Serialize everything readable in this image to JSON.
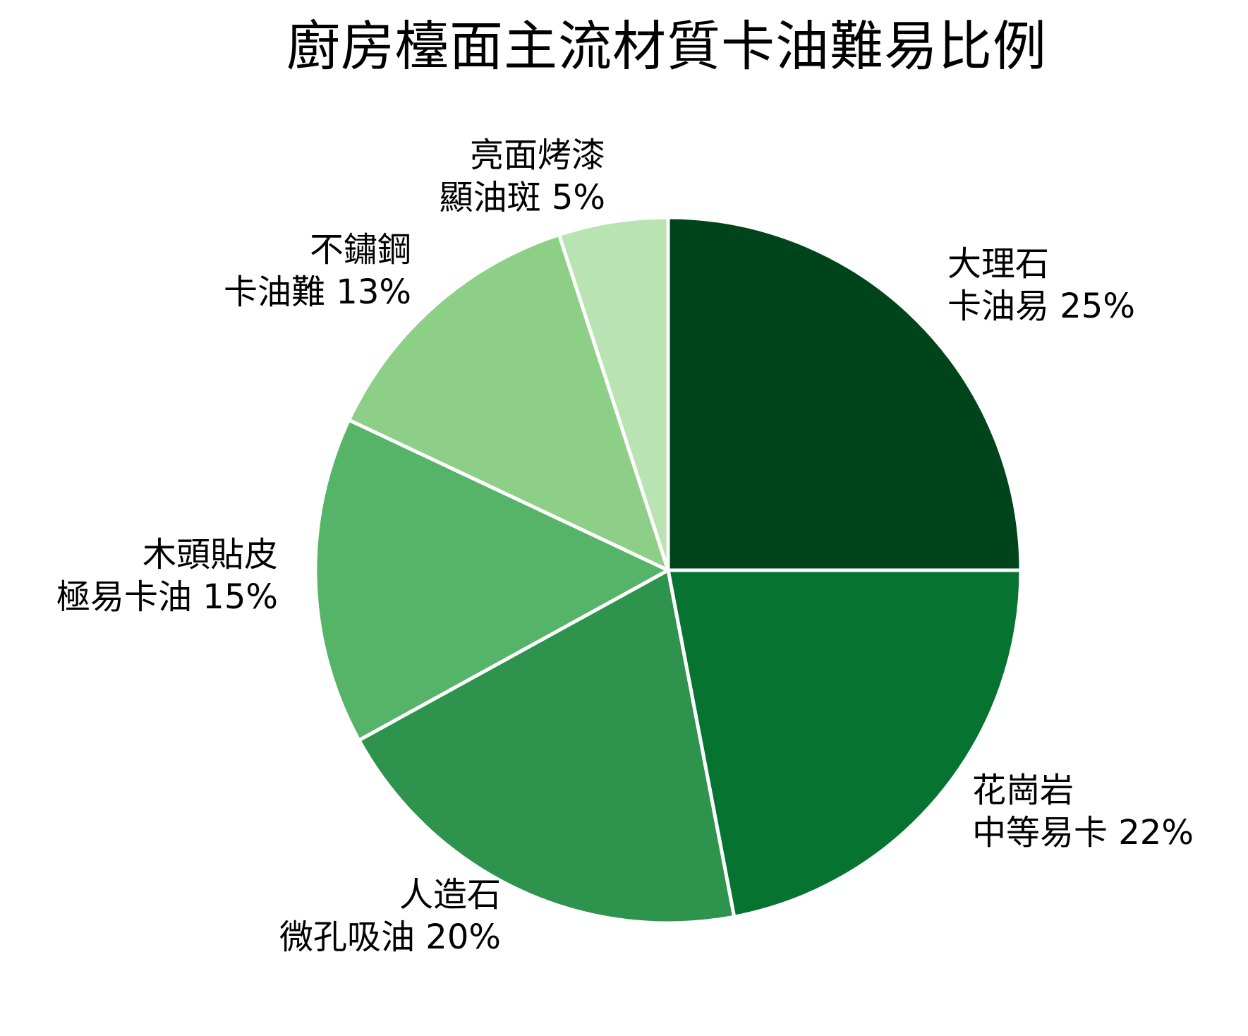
{
  "title": "廚房檯面主流材質卡油難易比例",
  "chart_data": {
    "type": "pie",
    "title": "廚房檯面主流材質卡油難易比例",
    "start_angle": "12 o'clock, clockwise",
    "categories": [
      "大理石",
      "花崗岩",
      "人造石",
      "木頭貼皮",
      "不鏽鋼",
      "亮面烤漆"
    ],
    "values": [
      25,
      22,
      20,
      15,
      13,
      5
    ],
    "unit": "%",
    "descriptions": [
      "卡油易",
      "中等易卡",
      "微孔吸油",
      "極易卡油",
      "卡油難",
      "顯油斑"
    ],
    "colors": [
      "#00441b",
      "#077331",
      "#2d934d",
      "#56b468",
      "#8ecf87",
      "#b9e3b2"
    ],
    "legend": "none (direct labels)",
    "labels": [
      {
        "line1": "大理石",
        "line2": "卡油易 25%"
      },
      {
        "line1": "花崗岩",
        "line2": "中等易卡 22%"
      },
      {
        "line1": "人造石",
        "line2": "微孔吸油 20%"
      },
      {
        "line1": "木頭貼皮",
        "line2": "極易卡油 15%"
      },
      {
        "line1": "不鏽鋼",
        "line2": "卡油難 13%"
      },
      {
        "line1": "亮面烤漆",
        "line2": "顯油斑 5%"
      }
    ]
  }
}
